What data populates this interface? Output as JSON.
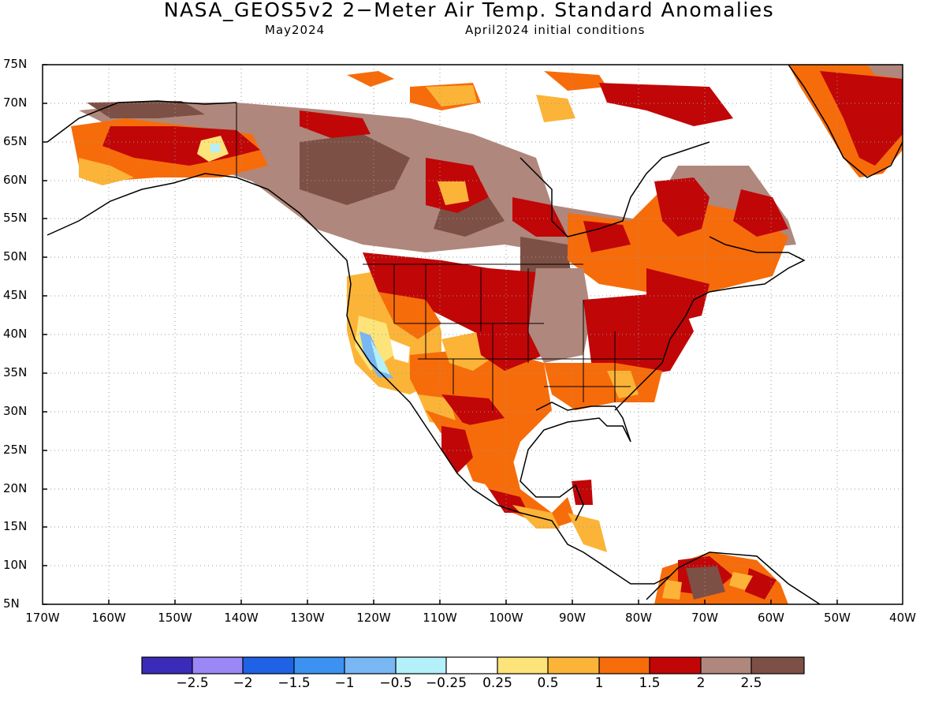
{
  "title": "NASA_GEOS5v2 2−Meter Air Temp. Standard Anomalies",
  "subtitle_left": "May2024",
  "subtitle_right": "April2024 initial conditions",
  "map": {
    "projection": "lat-lon",
    "lon_range": [
      -170,
      -40
    ],
    "lat_range": [
      5,
      75
    ],
    "lat_labels": [
      "75N",
      "70N",
      "65N",
      "60N",
      "55N",
      "50N",
      "45N",
      "40N",
      "35N",
      "30N",
      "25N",
      "20N",
      "15N",
      "10N",
      "5N"
    ],
    "lon_labels": [
      "170W",
      "160W",
      "150W",
      "140W",
      "130W",
      "120W",
      "110W",
      "100W",
      "90W",
      "80W",
      "70W",
      "60W",
      "50W",
      "40W"
    ],
    "grid": "dotted",
    "features": [
      "coastlines",
      "us-state-borders",
      "country-borders"
    ]
  },
  "colorbar": {
    "colors": [
      "#3a2cb8",
      "#9b88f6",
      "#1f62e6",
      "#3c92f0",
      "#78b6f4",
      "#b4f0fa",
      "#ffffff",
      "#fde47a",
      "#fbb438",
      "#f66c0a",
      "#c10607",
      "#b0877c",
      "#7d5045"
    ],
    "labels": [
      "−2.5",
      "−2",
      "−1.5",
      "−1",
      "−0.5",
      "−0.25",
      "0.25",
      "0.5",
      "1",
      "1.5",
      "2",
      "2.5"
    ]
  }
}
